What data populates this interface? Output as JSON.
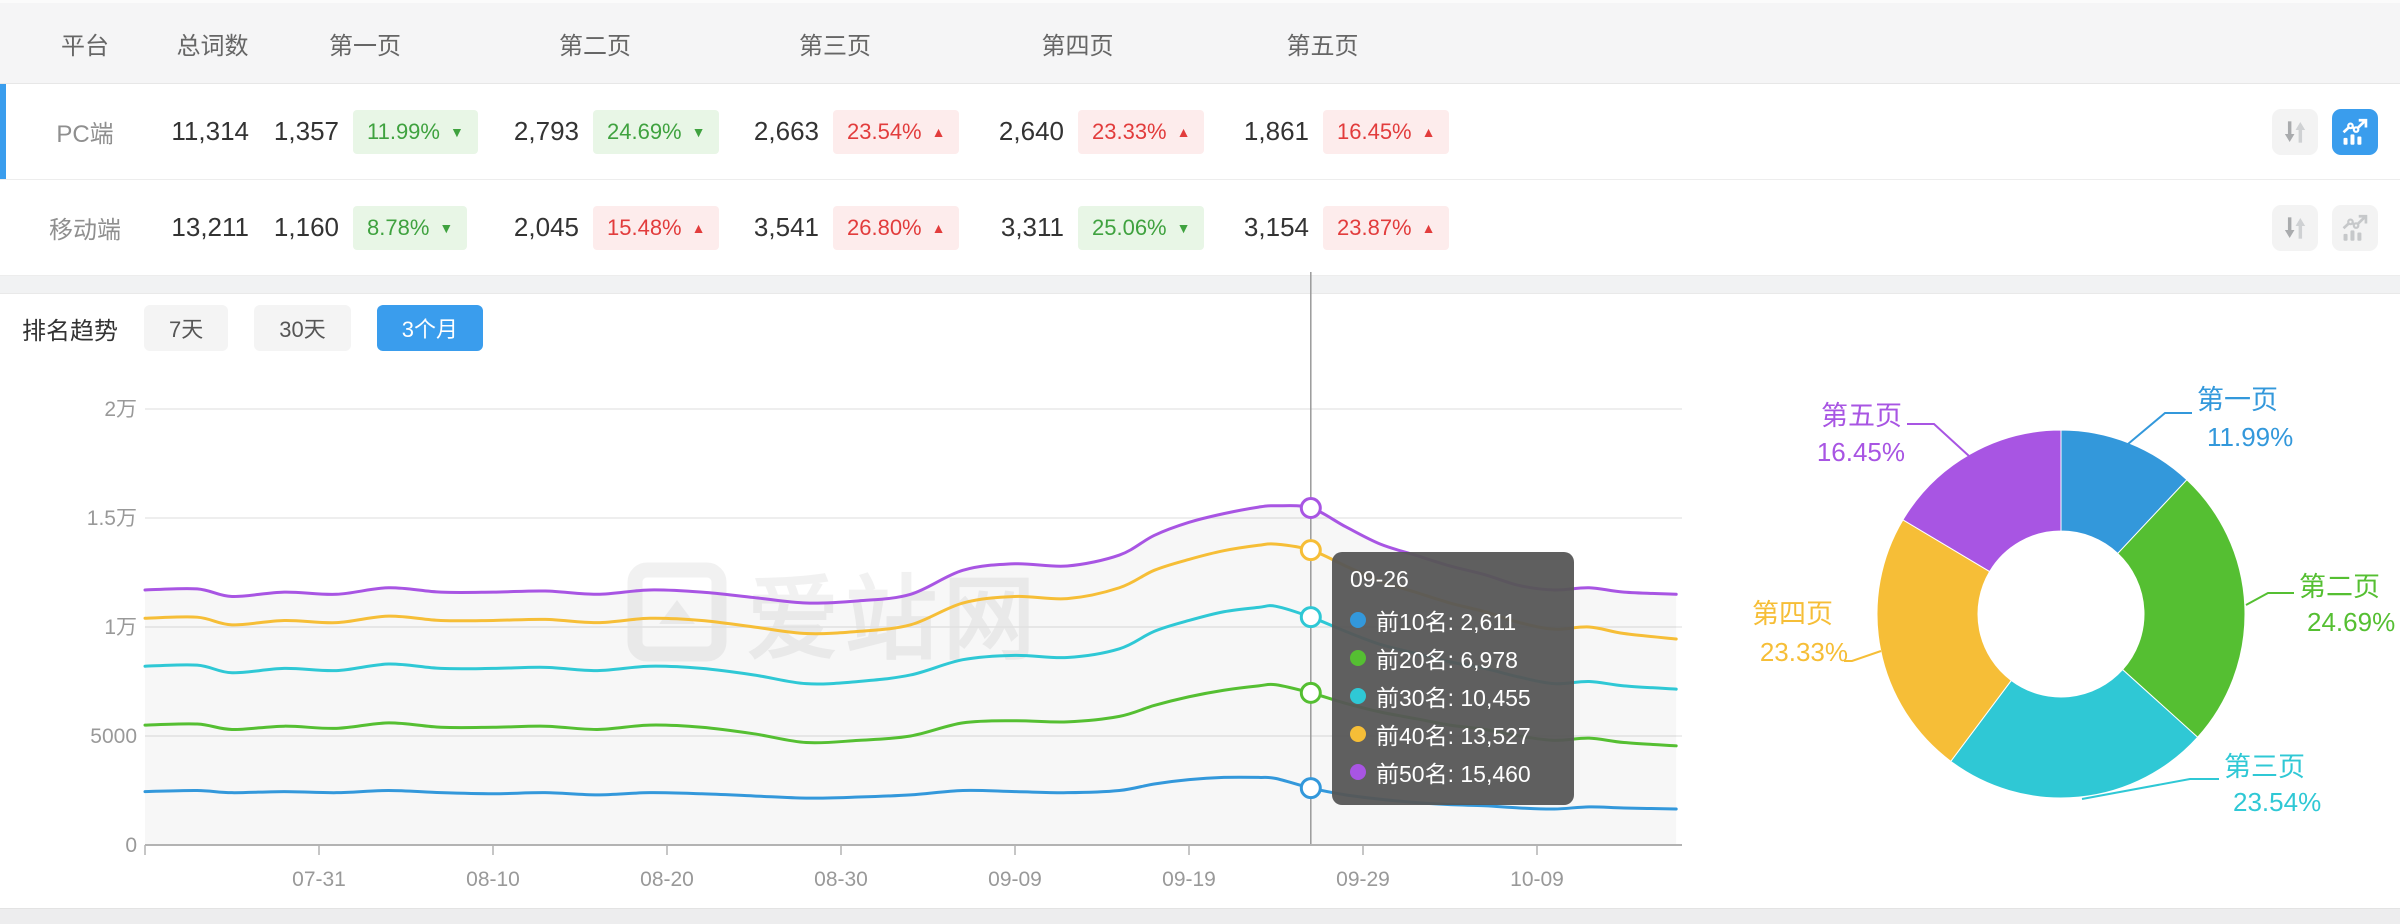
{
  "accent": "#3a9ded",
  "table": {
    "headers": [
      "平台",
      "总词数",
      "第一页",
      "第二页",
      "第三页",
      "第四页",
      "第五页"
    ],
    "rows": [
      {
        "platform": "PC端",
        "selected": true,
        "total": "11,314",
        "pages": [
          {
            "count": "1,357",
            "pct": "11.99%",
            "dir": "down"
          },
          {
            "count": "2,793",
            "pct": "24.69%",
            "dir": "down"
          },
          {
            "count": "2,663",
            "pct": "23.54%",
            "dir": "up"
          },
          {
            "count": "2,640",
            "pct": "23.33%",
            "dir": "up"
          },
          {
            "count": "1,861",
            "pct": "16.45%",
            "dir": "up"
          }
        ],
        "buttons": {
          "sort_active": false,
          "trend_active": true
        }
      },
      {
        "platform": "移动端",
        "selected": false,
        "total": "13,211",
        "pages": [
          {
            "count": "1,160",
            "pct": "8.78%",
            "dir": "down"
          },
          {
            "count": "2,045",
            "pct": "15.48%",
            "dir": "up"
          },
          {
            "count": "3,541",
            "pct": "26.80%",
            "dir": "up"
          },
          {
            "count": "3,311",
            "pct": "25.06%",
            "dir": "down"
          },
          {
            "count": "3,154",
            "pct": "23.87%",
            "dir": "up"
          }
        ],
        "buttons": {
          "sort_active": false,
          "trend_active": false
        }
      }
    ]
  },
  "trend_section": {
    "title": "排名趋势",
    "tabs": [
      {
        "label": "7天",
        "active": false
      },
      {
        "label": "30天",
        "active": false
      },
      {
        "label": "3个月",
        "active": true
      }
    ]
  },
  "watermark": "爱站网",
  "chart_data": [
    {
      "type": "line",
      "title": "排名趋势（3个月）",
      "x_tick_labels": [
        "07-31",
        "08-10",
        "08-20",
        "08-30",
        "09-09",
        "09-19",
        "09-29",
        "10-09"
      ],
      "x_tick_days": [
        10,
        20,
        30,
        40,
        50,
        60,
        70,
        80
      ],
      "days": [
        0,
        3,
        5,
        8,
        11,
        14,
        17,
        20,
        23,
        26,
        29,
        32,
        35,
        38,
        41,
        44,
        47,
        50,
        53,
        56,
        58,
        60,
        62,
        64,
        65,
        67,
        69,
        71,
        73,
        75,
        77,
        79,
        81,
        83,
        85,
        88
      ],
      "xlim": [
        0,
        88.5
      ],
      "ylim": [
        0,
        20000
      ],
      "y_ticks": [
        {
          "value": 0,
          "label": "0"
        },
        {
          "value": 5000,
          "label": "5000"
        },
        {
          "value": 10000,
          "label": "1万"
        },
        {
          "value": 15000,
          "label": "1.5万"
        },
        {
          "value": 20000,
          "label": "2万"
        }
      ],
      "grid": true,
      "legend_position": "none",
      "series": [
        {
          "name": "前10名",
          "color": "#3398db",
          "values": [
            2450,
            2500,
            2400,
            2450,
            2400,
            2500,
            2400,
            2350,
            2400,
            2300,
            2400,
            2350,
            2250,
            2150,
            2200,
            2300,
            2500,
            2450,
            2400,
            2500,
            2800,
            3000,
            3100,
            3100,
            3050,
            2611,
            2300,
            2100,
            1950,
            1850,
            1800,
            1700,
            1650,
            1750,
            1700,
            1650
          ]
        },
        {
          "name": "前20名",
          "color": "#55bf32",
          "values": [
            5500,
            5550,
            5300,
            5450,
            5350,
            5600,
            5400,
            5400,
            5450,
            5300,
            5500,
            5400,
            5100,
            4700,
            4800,
            5000,
            5600,
            5700,
            5650,
            5900,
            6400,
            6800,
            7100,
            7300,
            7350,
            6978,
            6500,
            6100,
            5800,
            5500,
            5300,
            5000,
            4800,
            4900,
            4700,
            4550
          ]
        },
        {
          "name": "前30名",
          "color": "#2fc8d5",
          "values": [
            8200,
            8250,
            7900,
            8100,
            8000,
            8300,
            8100,
            8100,
            8150,
            8000,
            8200,
            8100,
            7800,
            7400,
            7500,
            7800,
            8500,
            8700,
            8600,
            9000,
            9800,
            10300,
            10700,
            10900,
            10950,
            10455,
            9800,
            9200,
            8800,
            8400,
            8100,
            7700,
            7400,
            7500,
            7300,
            7150
          ]
        },
        {
          "name": "前40名",
          "color": "#f6be37",
          "values": [
            10400,
            10450,
            10100,
            10300,
            10200,
            10500,
            10300,
            10300,
            10350,
            10200,
            10400,
            10300,
            10000,
            9700,
            9800,
            10100,
            11100,
            11400,
            11300,
            11800,
            12600,
            13100,
            13500,
            13750,
            13800,
            13527,
            12800,
            12100,
            11600,
            11100,
            10700,
            10200,
            9900,
            10000,
            9700,
            9450
          ]
        },
        {
          "name": "前50名",
          "color": "#a855e3",
          "values": [
            11700,
            11750,
            11400,
            11600,
            11500,
            11800,
            11600,
            11600,
            11650,
            11500,
            11700,
            11600,
            11350,
            11100,
            11200,
            11500,
            12600,
            12900,
            12800,
            13300,
            14200,
            14800,
            15200,
            15500,
            15560,
            15460,
            14600,
            13800,
            13300,
            12800,
            12400,
            11900,
            11700,
            11800,
            11600,
            11500
          ]
        }
      ],
      "crosshair": {
        "day": 67,
        "date": "09-26"
      },
      "tooltip": {
        "title": "09-26",
        "items": [
          {
            "name": "前10名",
            "value": "2,611",
            "color": "#3398db"
          },
          {
            "name": "前20名",
            "value": "6,978",
            "color": "#55bf32"
          },
          {
            "name": "前30名",
            "value": "10,455",
            "color": "#2fc8d5"
          },
          {
            "name": "前40名",
            "value": "13,527",
            "color": "#f6be37"
          },
          {
            "name": "前50名",
            "value": "15,460",
            "color": "#a855e3"
          }
        ]
      }
    },
    {
      "type": "pie",
      "donut": true,
      "slices": [
        {
          "label": "第一页",
          "pct": 11.99,
          "pct_label": "11.99%",
          "color": "#3398db"
        },
        {
          "label": "第二页",
          "pct": 24.69,
          "pct_label": "24.69%",
          "color": "#55bf32"
        },
        {
          "label": "第三页",
          "pct": 23.54,
          "pct_label": "23.54%",
          "color": "#2fc8d5"
        },
        {
          "label": "第四页",
          "pct": 23.33,
          "pct_label": "23.33%",
          "color": "#f6be37"
        },
        {
          "label": "第五页",
          "pct": 16.45,
          "pct_label": "16.45%",
          "color": "#a855e3"
        }
      ]
    }
  ]
}
